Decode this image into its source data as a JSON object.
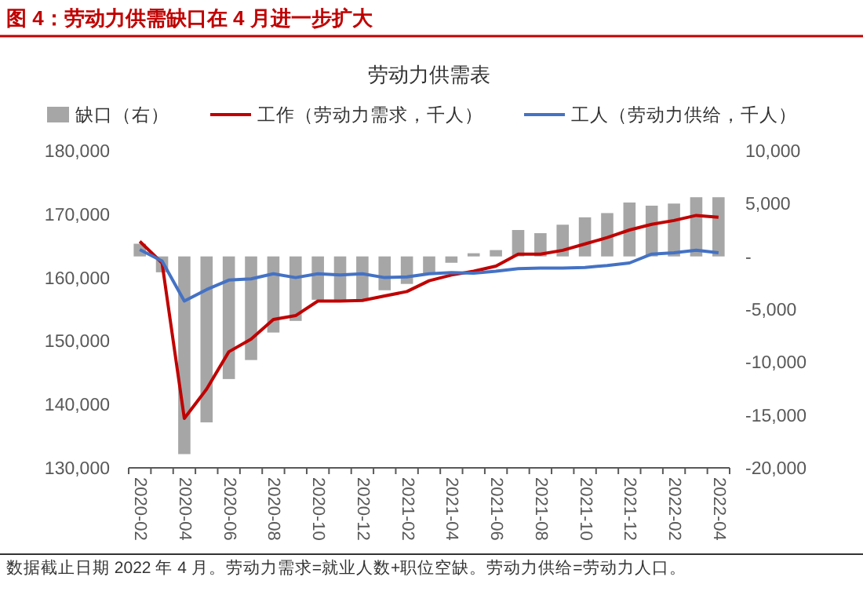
{
  "chart_data": {
    "type": "bar",
    "title": "图 4：劳动力供需缺口在 4 月进一步扩大",
    "subtitle": "劳动力供需表",
    "categories": [
      "2020-02",
      null,
      "2020-04",
      null,
      "2020-06",
      null,
      "2020-08",
      null,
      "2020-10",
      null,
      "2020-12",
      null,
      "2021-02",
      null,
      "2021-04",
      null,
      "2021-06",
      null,
      "2021-08",
      null,
      "2021-10",
      null,
      "2021-12",
      null,
      "2022-02",
      null,
      "2022-04"
    ],
    "series": [
      {
        "name": "缺口（右）",
        "axis": "y2",
        "color": "#a6a6a6",
        "values": [
          1200,
          -1500,
          -18700,
          -15700,
          -11600,
          -9800,
          -7200,
          -6100,
          -4100,
          -4100,
          -4100,
          -3200,
          -2600,
          -1600,
          -600,
          300,
          600,
          2500,
          2200,
          3000,
          3700,
          4100,
          5100,
          4800,
          5000,
          5600,
          5600
        ]
      },
      {
        "name": "工作（劳动力需求，千人）",
        "type": "line",
        "color": "#c00000",
        "values": [
          165700,
          162300,
          137800,
          142400,
          148300,
          150300,
          153400,
          154000,
          156300,
          156300,
          156400,
          157100,
          157800,
          159500,
          160400,
          161000,
          161800,
          163700,
          163700,
          164300,
          165300,
          166300,
          167500,
          168400,
          169000,
          169800,
          169500
        ]
      },
      {
        "name": "工人（劳动力供给，千人）",
        "type": "line",
        "color": "#4472c4",
        "values": [
          164400,
          162600,
          156300,
          158100,
          159600,
          159800,
          160600,
          160000,
          160600,
          160400,
          160600,
          160000,
          160100,
          160600,
          160800,
          160700,
          161000,
          161400,
          161500,
          161500,
          161600,
          161900,
          162300,
          163700,
          163900,
          164300,
          163900
        ]
      }
    ],
    "ylim": [
      130000,
      180000
    ],
    "yticks": [
      {
        "value": 130000,
        "label": "130,000"
      },
      {
        "value": 140000,
        "label": "140,000"
      },
      {
        "value": 150000,
        "label": "150,000"
      },
      {
        "value": 160000,
        "label": "160,000"
      },
      {
        "value": 170000,
        "label": "170,000"
      },
      {
        "value": 180000,
        "label": "180,000"
      }
    ],
    "y2lim": [
      -20000,
      10000
    ],
    "y2ticks": [
      {
        "value": -20000,
        "label": "-20,000"
      },
      {
        "value": -15000,
        "label": "-15,000"
      },
      {
        "value": -10000,
        "label": "-10,000"
      },
      {
        "value": -5000,
        "label": "-5,000"
      },
      {
        "value": 0,
        "label": "-"
      },
      {
        "value": 5000,
        "label": "5,000"
      },
      {
        "value": 10000,
        "label": "10,000"
      }
    ],
    "legend": "top",
    "annotations": [
      "数据截止日期 2022 年 4 月。劳动力需求=就业人数+职位空缺。劳动力供给=劳动力人口。"
    ]
  }
}
